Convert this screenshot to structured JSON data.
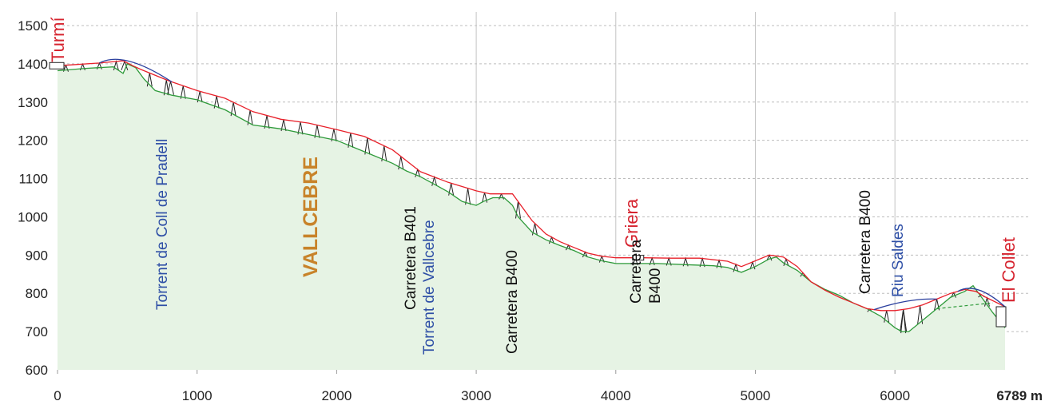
{
  "chart_data": {
    "type": "area",
    "x_unit": "m",
    "xlim": [
      0,
      6789
    ],
    "ylim": [
      600,
      1500
    ],
    "x_ticks": [
      "0",
      "1000",
      "2000",
      "3000",
      "4000",
      "5000",
      "6000"
    ],
    "x_end_label": "6789 m",
    "y_ticks": [
      "600",
      "700",
      "800",
      "900",
      "1000",
      "1100",
      "1200",
      "1300",
      "1400",
      "1500"
    ],
    "grid": true,
    "colors": {
      "terrain_line": "#2e9a3a",
      "terrain_fill": "#e6f3e4",
      "track_red": "#e8202a",
      "track_blue": "#2a3f9e",
      "town_label": "#d6242f",
      "river_label": "#2e4fa6",
      "village_label": "#c8832a",
      "road_label": "#111111"
    },
    "series": [
      {
        "key": "terrain",
        "x": [
          0,
          200,
          400,
          470,
          500,
          560,
          620,
          700,
          820,
          1000,
          1200,
          1400,
          1600,
          1800,
          2000,
          2200,
          2400,
          2500,
          2600,
          2700,
          2800,
          2900,
          3000,
          3050,
          3120,
          3200,
          3260,
          3300,
          3400,
          3500,
          3600,
          3700,
          3800,
          3900,
          4000,
          4100,
          4300,
          4500,
          4700,
          4800,
          4900,
          5000,
          5100,
          5150,
          5200,
          5300,
          5400,
          5500,
          5600,
          5700,
          5800,
          5900,
          6000,
          6050,
          6100,
          6200,
          6300,
          6400,
          6500,
          6560,
          6620,
          6700,
          6789
        ],
        "values": [
          1382,
          1388,
          1392,
          1375,
          1400,
          1390,
          1360,
          1330,
          1318,
          1306,
          1280,
          1240,
          1230,
          1215,
          1200,
          1170,
          1140,
          1120,
          1105,
          1085,
          1065,
          1040,
          1030,
          1040,
          1050,
          1050,
          1030,
          1000,
          960,
          940,
          925,
          912,
          895,
          885,
          878,
          878,
          878,
          875,
          872,
          868,
          855,
          870,
          890,
          895,
          880,
          860,
          830,
          810,
          795,
          775,
          760,
          740,
          710,
          700,
          700,
          730,
          760,
          790,
          805,
          820,
          790,
          750,
          710
        ]
      },
      {
        "key": "track",
        "x": [
          0,
          300,
          470,
          540,
          600,
          800,
          1000,
          1200,
          1400,
          1600,
          1800,
          2000,
          2200,
          2400,
          2600,
          2800,
          3000,
          3100,
          3260,
          3300,
          3400,
          3500,
          3600,
          3700,
          3800,
          3900,
          4000,
          4200,
          4400,
          4600,
          4800,
          4900,
          5000,
          5100,
          5200,
          5300,
          5400,
          5500,
          5600,
          5700,
          5800,
          5900,
          6000,
          6100,
          6200,
          6300,
          6400,
          6500,
          6580,
          6650,
          6789
        ],
        "values": [
          1395,
          1402,
          1408,
          1395,
          1385,
          1355,
          1330,
          1310,
          1275,
          1255,
          1245,
          1228,
          1210,
          1175,
          1118,
          1090,
          1068,
          1060,
          1060,
          1040,
          990,
          955,
          935,
          920,
          905,
          897,
          893,
          893,
          892,
          892,
          884,
          870,
          885,
          900,
          895,
          870,
          830,
          808,
          790,
          775,
          760,
          755,
          755,
          760,
          770,
          785,
          800,
          810,
          805,
          790,
          765
        ]
      }
    ],
    "labels": [
      {
        "text": "Turmí",
        "x": 0,
        "color": "town",
        "bold": false
      },
      {
        "text": "Torrent de Coll de Pradell",
        "x": 800,
        "color": "river",
        "bold": false
      },
      {
        "text": "VALLCEBRE",
        "x": 1840,
        "color": "village",
        "bold": true
      },
      {
        "text": "Carretera B401",
        "x": 2600,
        "color": "road",
        "bold": false
      },
      {
        "text": "Torrent de Vallcebre",
        "x": 2740,
        "color": "river",
        "bold": false
      },
      {
        "text": "Carretera B400",
        "x": 3400,
        "color": "road",
        "bold": false
      },
      {
        "text": "Griera",
        "x": 4160,
        "color": "town",
        "bold": false
      },
      {
        "text": "Carretera",
        "x": 4200,
        "color": "road",
        "bold": false
      },
      {
        "text": "B400",
        "x": 4340,
        "color": "road",
        "bold": false
      },
      {
        "text": "Carretera B400",
        "x": 5900,
        "color": "road",
        "bold": false
      },
      {
        "text": "Riu Saldes",
        "x": 6180,
        "color": "river",
        "bold": false
      },
      {
        "text": "El Collet",
        "x": 6789,
        "color": "town",
        "bold": false
      }
    ]
  }
}
